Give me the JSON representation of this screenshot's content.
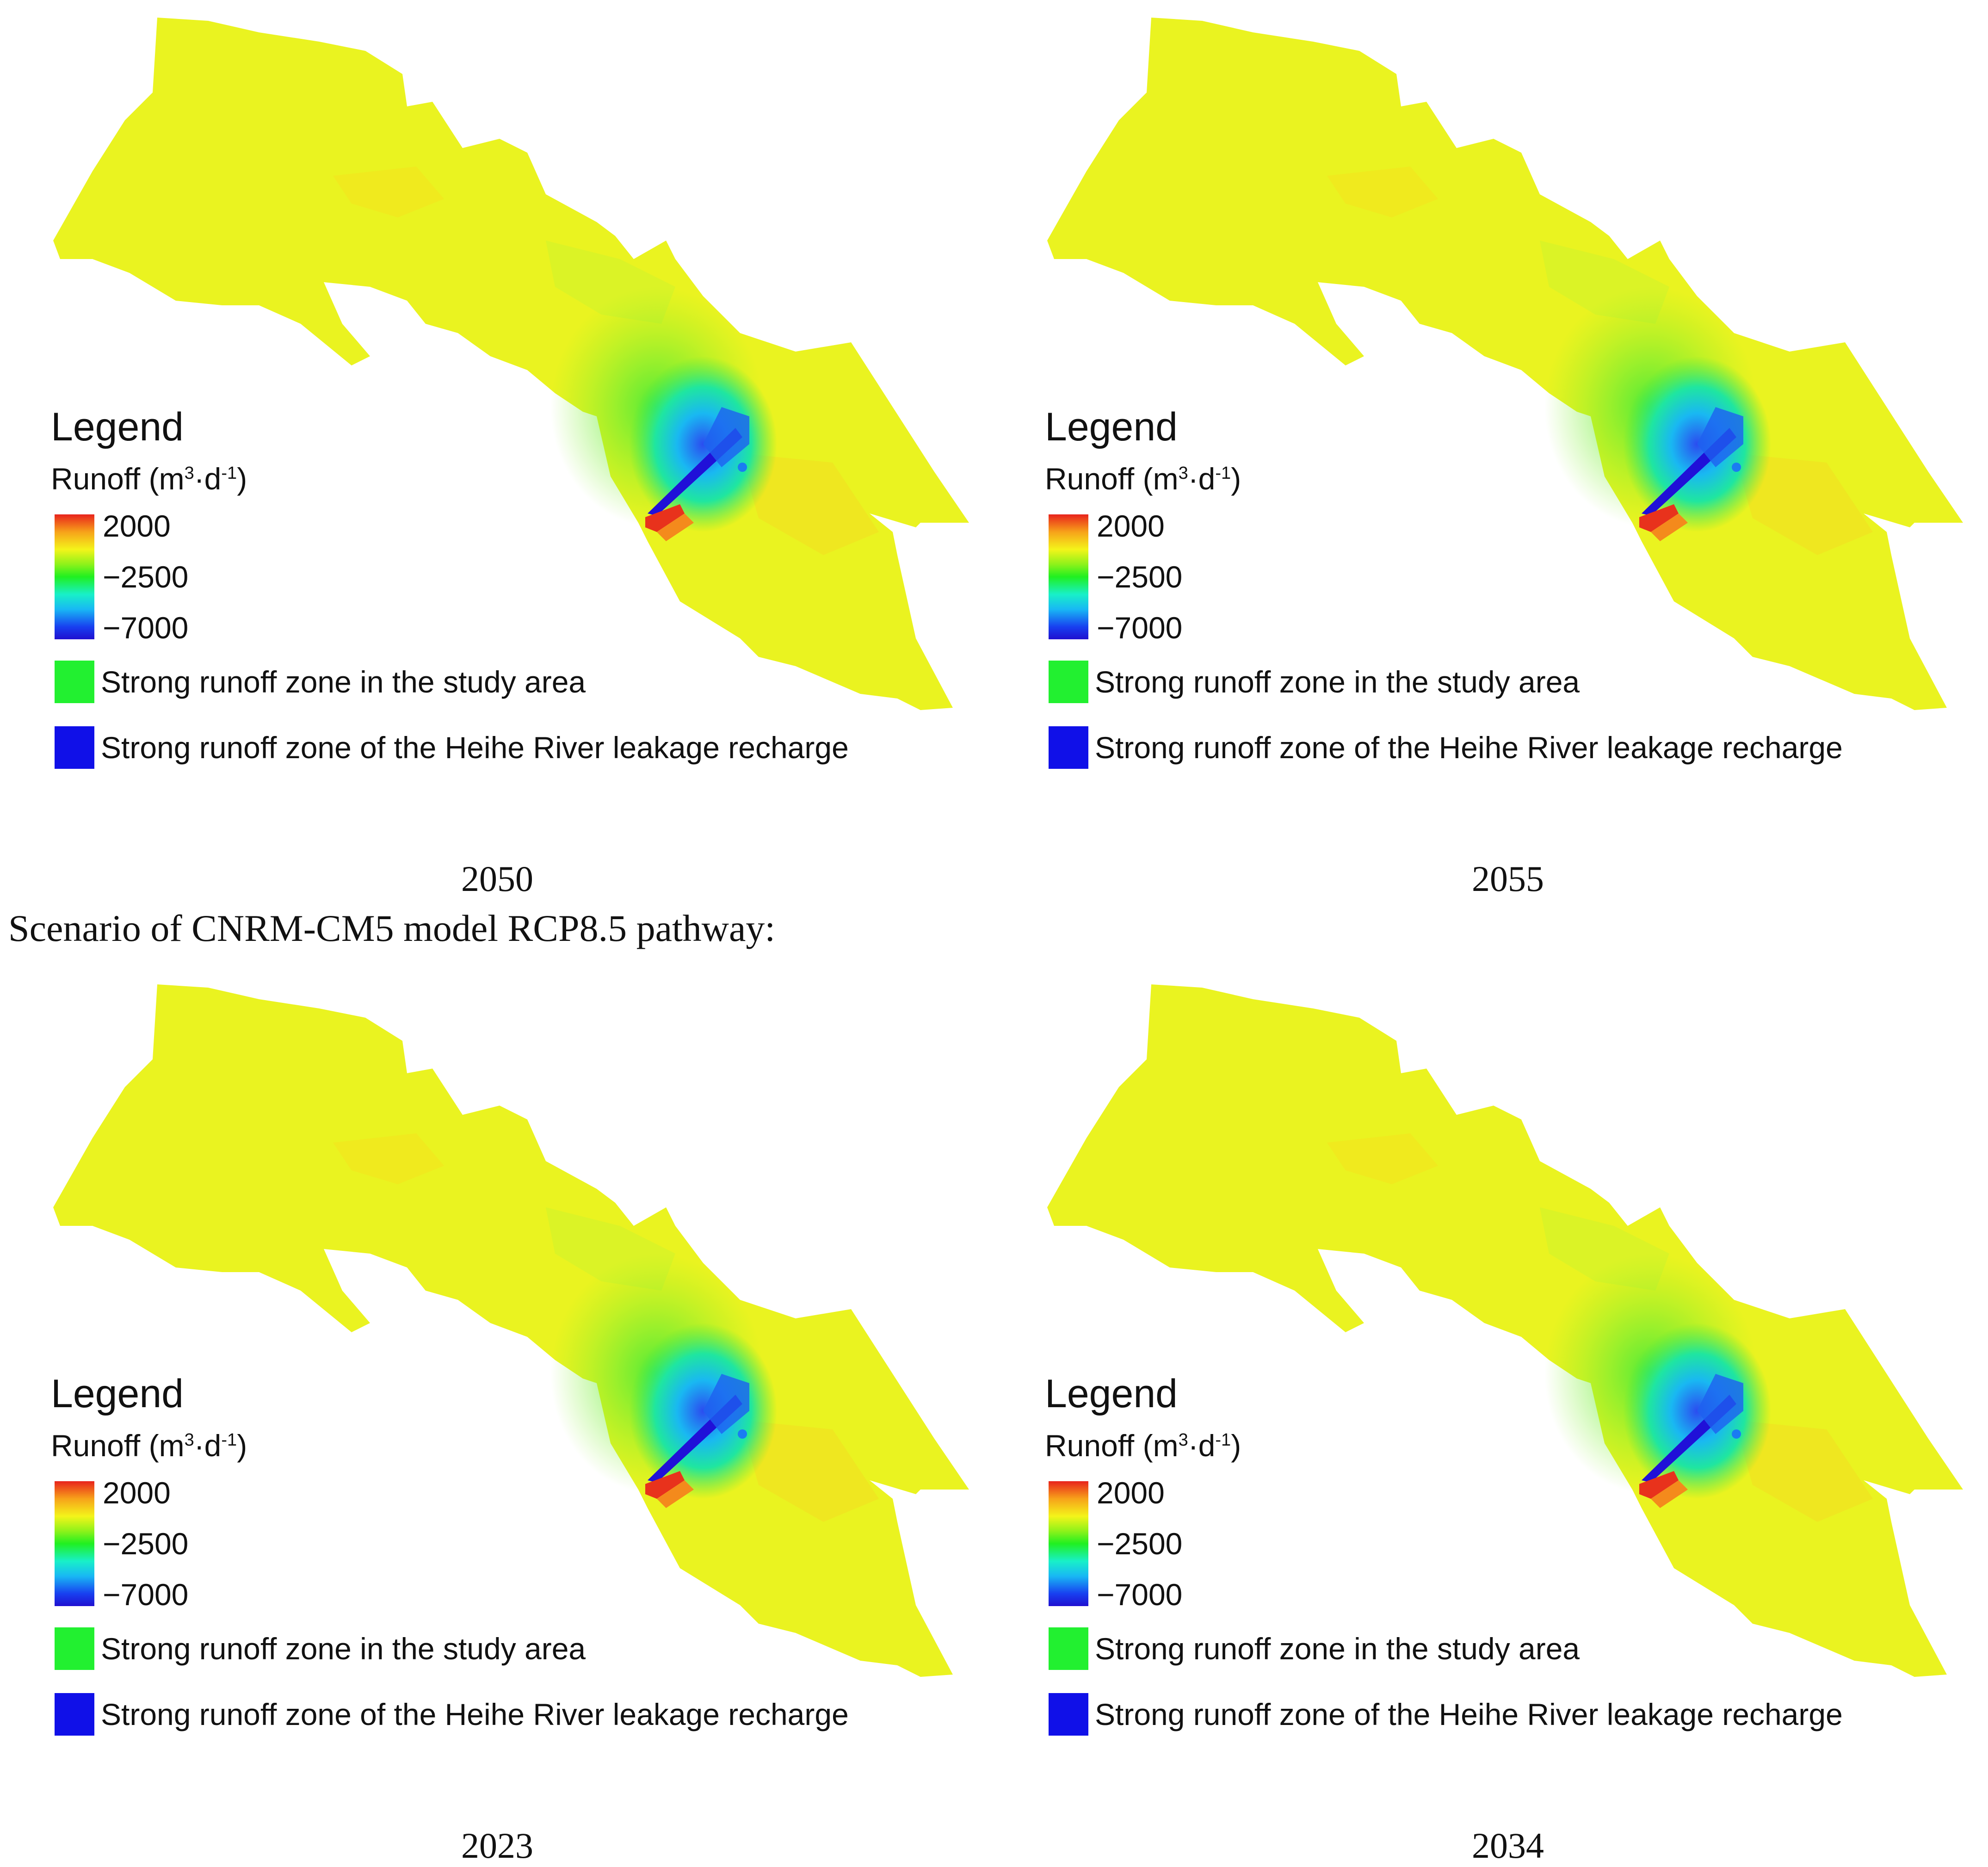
{
  "scenario_heading": "Scenario of CNRM-CM5 model RCP8.5 pathway:",
  "legend": {
    "title": "Legend",
    "quantity": "Runoff (m",
    "unit_sup1": "3",
    "unit_mid": "·d",
    "unit_sup2": "-1",
    "unit_close": ")",
    "ticks": [
      "2000",
      "−2500",
      "−7000"
    ],
    "range_max": 2000,
    "range_mid": -2500,
    "range_min": -7000,
    "zone_study": "Strong runoff zone in the study area",
    "zone_heihe": "Strong runoff zone of the Heihe River leakage recharge",
    "colors": {
      "study_zone": "#22f030",
      "heihe_zone": "#1010e8",
      "high": "#e8231c",
      "background": "#e6f21a"
    }
  },
  "panels": [
    {
      "year": "2050"
    },
    {
      "year": "2055"
    },
    {
      "year": "2023"
    },
    {
      "year": "2034"
    }
  ]
}
